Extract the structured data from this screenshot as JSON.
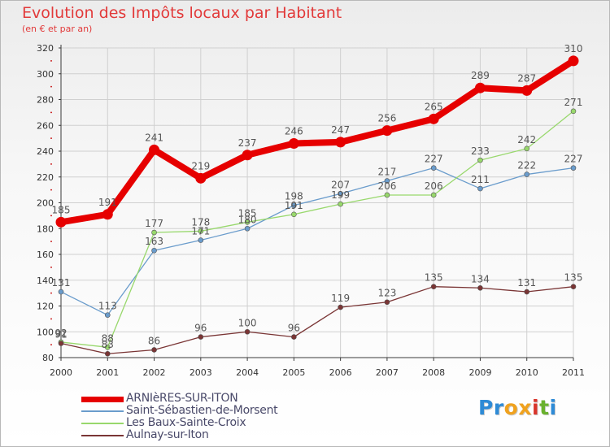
{
  "header": {
    "title": "Evolution des Impôts locaux par Habitant",
    "subtitle": "(en € et par an)"
  },
  "colors": {
    "title": "#e23a3a",
    "grid": "#d0d0d0",
    "axis": "#3a3a3a",
    "tick_mark": "#cc2b2b"
  },
  "logo": {
    "letters": [
      {
        "char": "P",
        "color": "#2e8bd6"
      },
      {
        "char": "r",
        "color": "#2e8bd6"
      },
      {
        "char": "o",
        "color": "#f0a21e"
      },
      {
        "char": "x",
        "color": "#f0a21e"
      },
      {
        "char": "i",
        "color": "#d9352b"
      },
      {
        "char": "t",
        "color": "#6ab12e"
      },
      {
        "char": "i",
        "color": "#2e8bd6"
      }
    ]
  },
  "chart_data": {
    "type": "line",
    "title": "Evolution des Impôts locaux par Habitant",
    "subtitle": "(en € et par an)",
    "xlabel": "",
    "ylabel": "",
    "categories": [
      "2000",
      "2001",
      "2002",
      "2003",
      "2004",
      "2005",
      "2006",
      "2007",
      "2008",
      "2009",
      "2010",
      "2011"
    ],
    "ylim": [
      80,
      320
    ],
    "yticks": [
      80,
      100,
      120,
      140,
      160,
      180,
      200,
      220,
      240,
      260,
      280,
      300,
      320
    ],
    "grid": true,
    "legend_position": "bottom-left",
    "series": [
      {
        "name": "ARNIèRES-SUR-ITON",
        "color": "#e60000",
        "emphasis": true,
        "values": [
          185,
          191,
          241,
          219,
          237,
          246,
          247,
          256,
          265,
          289,
          287,
          310
        ]
      },
      {
        "name": "Saint-Sébastien-de-Morsent",
        "color": "#6a9ccc",
        "emphasis": false,
        "values": [
          131,
          113,
          163,
          171,
          180,
          198,
          207,
          217,
          227,
          211,
          222,
          227
        ]
      },
      {
        "name": "Les Baux-Sainte-Croix",
        "color": "#98d86c",
        "emphasis": false,
        "values": [
          92,
          88,
          177,
          178,
          185,
          191,
          199,
          206,
          206,
          233,
          242,
          271
        ]
      },
      {
        "name": "Aulnay-sur-Iton",
        "color": "#7a3535",
        "emphasis": false,
        "values": [
          91,
          83,
          86,
          96,
          100,
          96,
          119,
          123,
          135,
          134,
          131,
          135
        ]
      }
    ]
  }
}
